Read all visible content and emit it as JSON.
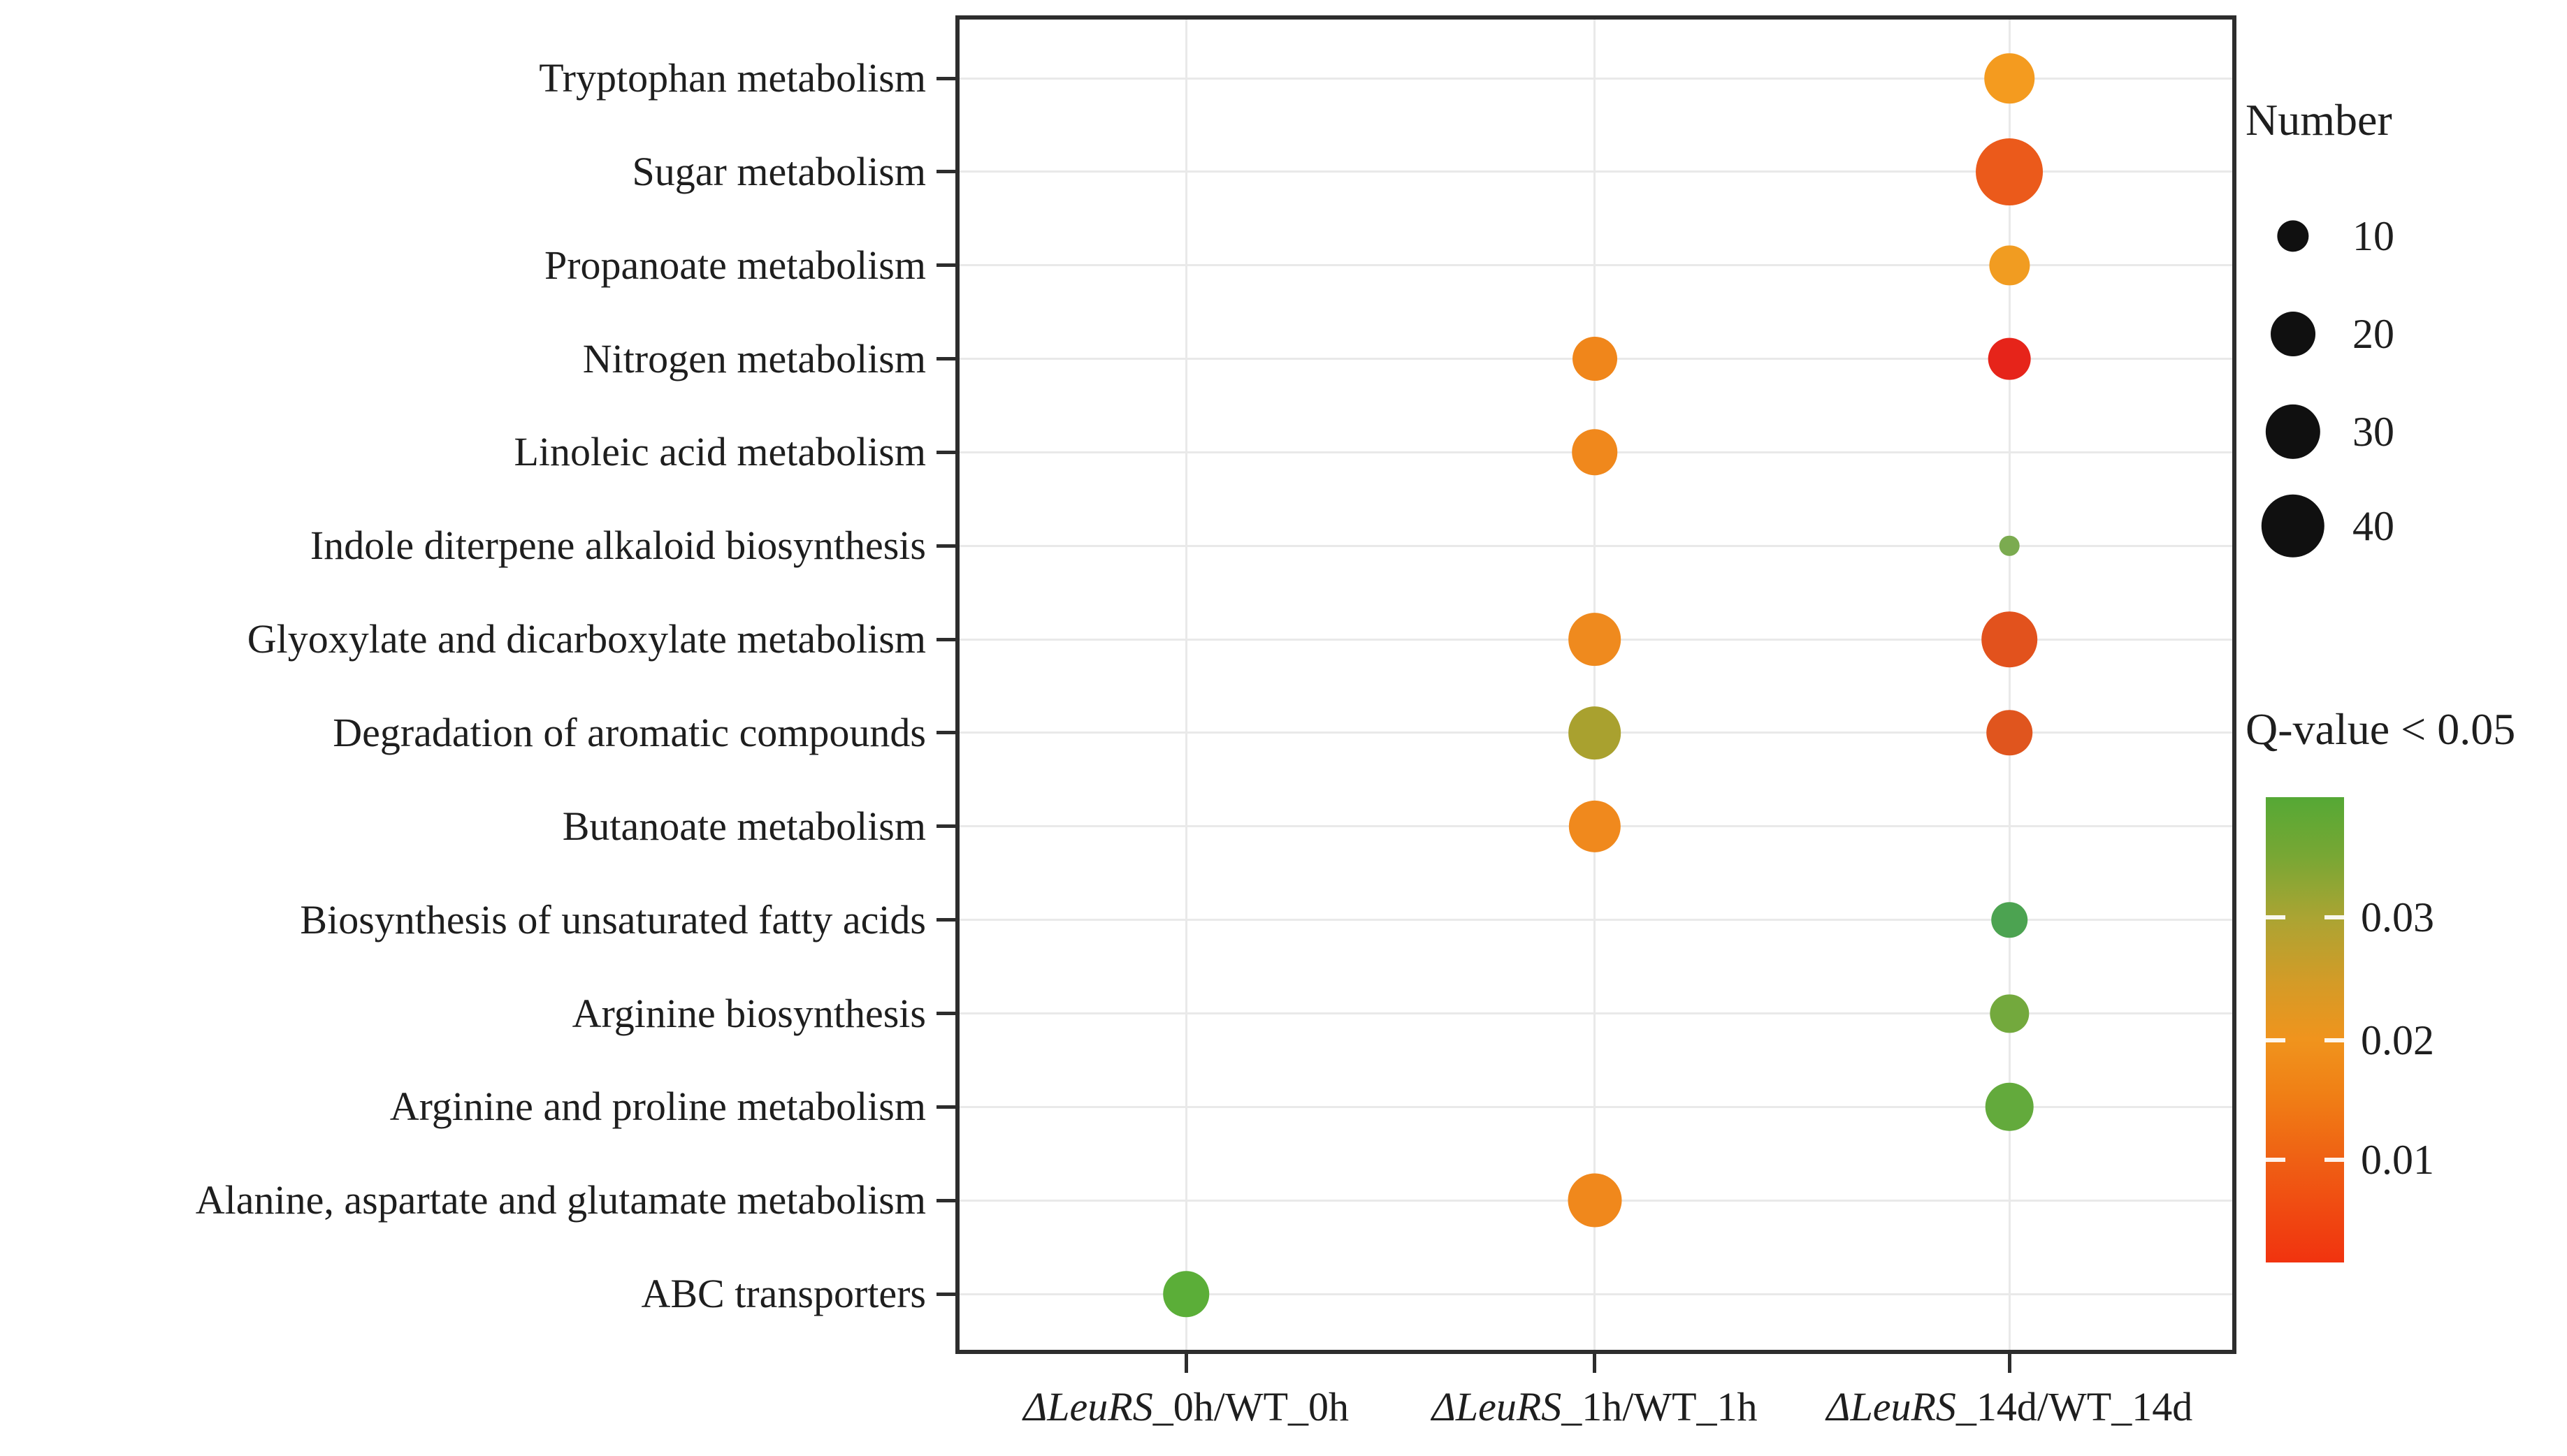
{
  "chart_data": {
    "type": "bubble",
    "title": "",
    "xlabel": "",
    "ylabel": "",
    "grid": true,
    "x_categories": [
      {
        "italic_prefix": "ΔLeuRS",
        "rest": "_0h/WT_0h"
      },
      {
        "italic_prefix": "ΔLeuRS",
        "rest": "_1h/WT_1h"
      },
      {
        "italic_prefix": "ΔLeuRS",
        "rest": "_14d/WT_14d"
      }
    ],
    "y_categories": [
      "Tryptophan metabolism",
      "Sugar metabolism",
      "Propanoate metabolism",
      "Nitrogen metabolism",
      "Linoleic acid metabolism",
      "Indole diterpene alkaloid biosynthesis",
      "Glyoxylate and dicarboxylate metabolism",
      "Degradation of aromatic compounds",
      "Butanoate metabolism",
      "Biosynthesis of unsaturated fatty acids",
      "Arginine biosynthesis",
      "Arginine and proline metabolism",
      "Alanine, aspartate and glutamate metabolism",
      "ABC transporters"
    ],
    "points": [
      {
        "x": 2,
        "y": 0,
        "number": 25,
        "q_value": 0.02,
        "color": "#F49B1F"
      },
      {
        "x": 2,
        "y": 1,
        "number": 45,
        "q_value": 0.007,
        "color": "#EB5A1B"
      },
      {
        "x": 2,
        "y": 2,
        "number": 16,
        "q_value": 0.02,
        "color": "#F19C21"
      },
      {
        "x": 1,
        "y": 3,
        "number": 20,
        "q_value": 0.016,
        "color": "#F0861B"
      },
      {
        "x": 2,
        "y": 3,
        "number": 18,
        "q_value": 0.002,
        "color": "#E6241A"
      },
      {
        "x": 1,
        "y": 4,
        "number": 21,
        "q_value": 0.016,
        "color": "#F0881C"
      },
      {
        "x": 2,
        "y": 5,
        "number": 4,
        "q_value": 0.036,
        "color": "#7BAB50"
      },
      {
        "x": 1,
        "y": 6,
        "number": 28,
        "q_value": 0.016,
        "color": "#EF8A1E"
      },
      {
        "x": 2,
        "y": 6,
        "number": 31,
        "q_value": 0.006,
        "color": "#E2521D"
      },
      {
        "x": 1,
        "y": 7,
        "number": 28,
        "q_value": 0.029,
        "color": "#A9A12F"
      },
      {
        "x": 2,
        "y": 7,
        "number": 21,
        "q_value": 0.006,
        "color": "#E0551E"
      },
      {
        "x": 1,
        "y": 8,
        "number": 27,
        "q_value": 0.016,
        "color": "#F0891D"
      },
      {
        "x": 2,
        "y": 9,
        "number": 13,
        "q_value": 0.041,
        "color": "#4CA351"
      },
      {
        "x": 2,
        "y": 10,
        "number": 15,
        "q_value": 0.037,
        "color": "#73A93D"
      },
      {
        "x": 2,
        "y": 11,
        "number": 23,
        "q_value": 0.039,
        "color": "#63AA3C"
      },
      {
        "x": 1,
        "y": 12,
        "number": 29,
        "q_value": 0.016,
        "color": "#F0881C"
      },
      {
        "x": 0,
        "y": 13,
        "number": 21,
        "q_value": 0.04,
        "color": "#5BAE38"
      }
    ],
    "size_legend": {
      "title": "Number",
      "entries": [
        {
          "value": "10",
          "number": 10
        },
        {
          "value": "20",
          "number": 20
        },
        {
          "value": "30",
          "number": 30
        },
        {
          "value": "40",
          "number": 40
        }
      ],
      "dot_color": "#101010",
      "position": "right-top"
    },
    "color_legend": {
      "title": "Q-value < 0.05",
      "tick_labels": [
        "0.03",
        "0.02",
        "0.01"
      ],
      "gradient_top_color": "#55A835",
      "gradient_bottom_color": "#F1330F",
      "value_top": 0.04,
      "value_bottom": 0.001,
      "position": "right-bottom"
    }
  }
}
